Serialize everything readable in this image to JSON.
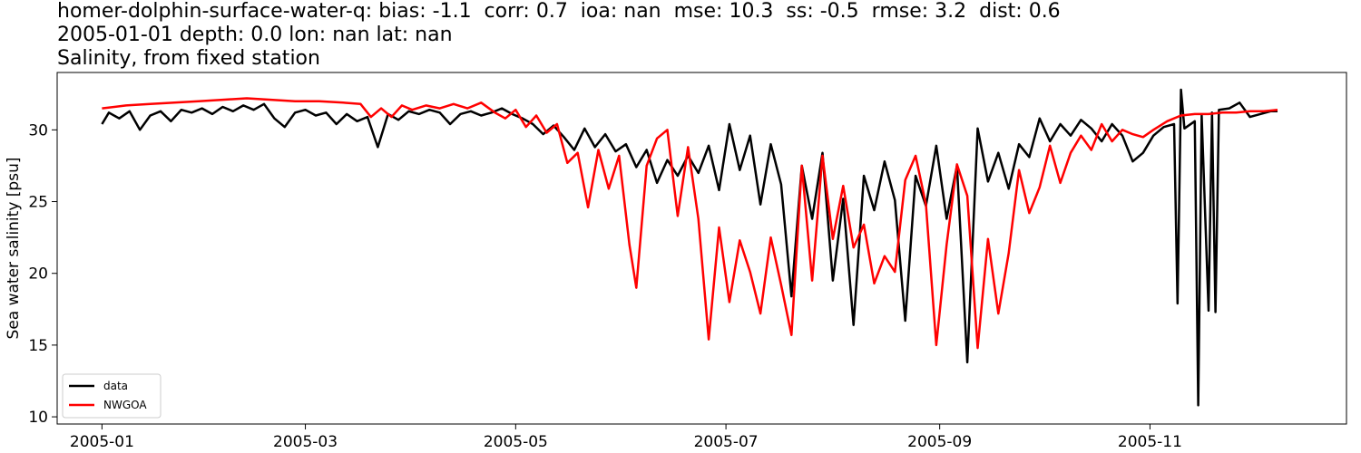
{
  "chart_data": {
    "type": "line",
    "title_lines": [
      "homer-dolphin-surface-water-q: bias: -1.1  corr: 0.7  ioa: nan  mse: 10.3  ss: -0.5  rmse: 3.2  dist: 0.6",
      "2005-01-01 depth: 0.0 lon: nan lat: nan",
      "Salinity, from fixed station"
    ],
    "xlabel": "",
    "ylabel": "Sea water salinity [psu]",
    "xlim": [
      "2004-12-19",
      "2005-12-28"
    ],
    "ylim": [
      9.5,
      34.0
    ],
    "x_ticks": [
      "2005-01",
      "2005-03",
      "2005-05",
      "2005-07",
      "2005-09",
      "2005-11"
    ],
    "y_ticks": [
      10,
      15,
      20,
      25,
      30
    ],
    "grid": false,
    "legend_position": "lower-left",
    "series": [
      {
        "name": "data",
        "color": "#000000",
        "points": [
          [
            "2005-01-01",
            30.4
          ],
          [
            "2005-01-03",
            31.2
          ],
          [
            "2005-01-06",
            30.8
          ],
          [
            "2005-01-09",
            31.3
          ],
          [
            "2005-01-12",
            30.0
          ],
          [
            "2005-01-15",
            31.0
          ],
          [
            "2005-01-18",
            31.3
          ],
          [
            "2005-01-21",
            30.6
          ],
          [
            "2005-01-24",
            31.4
          ],
          [
            "2005-01-27",
            31.2
          ],
          [
            "2005-01-30",
            31.5
          ],
          [
            "2005-02-02",
            31.1
          ],
          [
            "2005-02-05",
            31.6
          ],
          [
            "2005-02-08",
            31.3
          ],
          [
            "2005-02-11",
            31.7
          ],
          [
            "2005-02-14",
            31.4
          ],
          [
            "2005-02-17",
            31.8
          ],
          [
            "2005-02-20",
            30.8
          ],
          [
            "2005-02-23",
            30.2
          ],
          [
            "2005-02-26",
            31.2
          ],
          [
            "2005-03-01",
            31.4
          ],
          [
            "2005-03-04",
            31.0
          ],
          [
            "2005-03-07",
            31.2
          ],
          [
            "2005-03-10",
            30.4
          ],
          [
            "2005-03-13",
            31.1
          ],
          [
            "2005-03-16",
            30.6
          ],
          [
            "2005-03-19",
            30.9
          ],
          [
            "2005-03-22",
            28.8
          ],
          [
            "2005-03-25",
            31.1
          ],
          [
            "2005-03-28",
            30.7
          ],
          [
            "2005-03-31",
            31.3
          ],
          [
            "2005-04-03",
            31.1
          ],
          [
            "2005-04-06",
            31.4
          ],
          [
            "2005-04-09",
            31.2
          ],
          [
            "2005-04-12",
            30.4
          ],
          [
            "2005-04-15",
            31.1
          ],
          [
            "2005-04-18",
            31.3
          ],
          [
            "2005-04-21",
            31.0
          ],
          [
            "2005-04-24",
            31.2
          ],
          [
            "2005-04-27",
            31.5
          ],
          [
            "2005-04-30",
            31.1
          ],
          [
            "2005-05-03",
            30.8
          ],
          [
            "2005-05-06",
            30.4
          ],
          [
            "2005-05-09",
            29.7
          ],
          [
            "2005-05-12",
            30.3
          ],
          [
            "2005-05-15",
            29.5
          ],
          [
            "2005-05-18",
            28.6
          ],
          [
            "2005-05-21",
            30.1
          ],
          [
            "2005-05-24",
            28.8
          ],
          [
            "2005-05-27",
            29.7
          ],
          [
            "2005-05-30",
            28.5
          ],
          [
            "2005-06-02",
            29.0
          ],
          [
            "2005-06-05",
            27.4
          ],
          [
            "2005-06-08",
            28.6
          ],
          [
            "2005-06-11",
            26.3
          ],
          [
            "2005-06-14",
            27.9
          ],
          [
            "2005-06-17",
            26.8
          ],
          [
            "2005-06-20",
            28.2
          ],
          [
            "2005-06-23",
            27.0
          ],
          [
            "2005-06-26",
            28.9
          ],
          [
            "2005-06-29",
            25.8
          ],
          [
            "2005-07-02",
            30.4
          ],
          [
            "2005-07-05",
            27.2
          ],
          [
            "2005-07-08",
            29.6
          ],
          [
            "2005-07-11",
            24.8
          ],
          [
            "2005-07-14",
            29.0
          ],
          [
            "2005-07-17",
            26.2
          ],
          [
            "2005-07-20",
            18.4
          ],
          [
            "2005-07-23",
            27.5
          ],
          [
            "2005-07-26",
            23.8
          ],
          [
            "2005-07-29",
            28.4
          ],
          [
            "2005-08-01",
            19.5
          ],
          [
            "2005-08-04",
            25.2
          ],
          [
            "2005-08-07",
            16.4
          ],
          [
            "2005-08-10",
            26.8
          ],
          [
            "2005-08-13",
            24.4
          ],
          [
            "2005-08-16",
            27.8
          ],
          [
            "2005-08-19",
            25.1
          ],
          [
            "2005-08-22",
            16.7
          ],
          [
            "2005-08-25",
            26.8
          ],
          [
            "2005-08-28",
            24.7
          ],
          [
            "2005-08-31",
            28.9
          ],
          [
            "2005-09-03",
            23.8
          ],
          [
            "2005-09-06",
            27.5
          ],
          [
            "2005-09-09",
            13.8
          ],
          [
            "2005-09-12",
            30.1
          ],
          [
            "2005-09-15",
            26.4
          ],
          [
            "2005-09-18",
            28.4
          ],
          [
            "2005-09-21",
            25.9
          ],
          [
            "2005-09-24",
            29.0
          ],
          [
            "2005-09-27",
            28.1
          ],
          [
            "2005-09-30",
            30.8
          ],
          [
            "2005-10-03",
            29.2
          ],
          [
            "2005-10-06",
            30.4
          ],
          [
            "2005-10-09",
            29.6
          ],
          [
            "2005-10-12",
            30.7
          ],
          [
            "2005-10-15",
            30.1
          ],
          [
            "2005-10-18",
            29.2
          ],
          [
            "2005-10-21",
            30.4
          ],
          [
            "2005-10-24",
            29.6
          ],
          [
            "2005-10-27",
            27.8
          ],
          [
            "2005-10-30",
            28.4
          ],
          [
            "2005-11-02",
            29.6
          ],
          [
            "2005-11-05",
            30.2
          ],
          [
            "2005-11-08",
            30.4
          ],
          [
            "2005-11-09",
            17.9
          ],
          [
            "2005-11-10",
            32.8
          ],
          [
            "2005-11-11",
            30.1
          ],
          [
            "2005-11-14",
            30.6
          ],
          [
            "2005-11-15",
            10.8
          ],
          [
            "2005-11-16",
            31.0
          ],
          [
            "2005-11-18",
            17.4
          ],
          [
            "2005-11-19",
            31.2
          ],
          [
            "2005-11-20",
            17.3
          ],
          [
            "2005-11-21",
            31.4
          ],
          [
            "2005-11-24",
            31.5
          ],
          [
            "2005-11-27",
            31.9
          ],
          [
            "2005-11-30",
            30.9
          ],
          [
            "2005-12-03",
            31.1
          ],
          [
            "2005-12-06",
            31.3
          ],
          [
            "2005-12-08",
            31.3
          ]
        ]
      },
      {
        "name": "NWGOA",
        "color": "#ff0000",
        "points": [
          [
            "2005-01-01",
            31.5
          ],
          [
            "2005-01-08",
            31.7
          ],
          [
            "2005-01-15",
            31.8
          ],
          [
            "2005-01-22",
            31.9
          ],
          [
            "2005-01-29",
            32.0
          ],
          [
            "2005-02-05",
            32.1
          ],
          [
            "2005-02-12",
            32.2
          ],
          [
            "2005-02-19",
            32.1
          ],
          [
            "2005-02-26",
            32.0
          ],
          [
            "2005-03-05",
            32.0
          ],
          [
            "2005-03-12",
            31.9
          ],
          [
            "2005-03-17",
            31.8
          ],
          [
            "2005-03-20",
            30.9
          ],
          [
            "2005-03-23",
            31.5
          ],
          [
            "2005-03-26",
            30.9
          ],
          [
            "2005-03-29",
            31.7
          ],
          [
            "2005-04-01",
            31.4
          ],
          [
            "2005-04-05",
            31.7
          ],
          [
            "2005-04-09",
            31.5
          ],
          [
            "2005-04-13",
            31.8
          ],
          [
            "2005-04-17",
            31.5
          ],
          [
            "2005-04-21",
            31.9
          ],
          [
            "2005-04-25",
            31.2
          ],
          [
            "2005-04-28",
            30.8
          ],
          [
            "2005-05-01",
            31.4
          ],
          [
            "2005-05-04",
            30.2
          ],
          [
            "2005-05-07",
            31.0
          ],
          [
            "2005-05-10",
            29.8
          ],
          [
            "2005-05-13",
            30.4
          ],
          [
            "2005-05-16",
            27.7
          ],
          [
            "2005-05-19",
            28.4
          ],
          [
            "2005-05-22",
            24.6
          ],
          [
            "2005-05-25",
            28.6
          ],
          [
            "2005-05-28",
            25.9
          ],
          [
            "2005-05-31",
            28.2
          ],
          [
            "2005-06-03",
            22.0
          ],
          [
            "2005-06-05",
            19.0
          ],
          [
            "2005-06-08",
            27.5
          ],
          [
            "2005-06-11",
            29.4
          ],
          [
            "2005-06-14",
            30.0
          ],
          [
            "2005-06-17",
            24.0
          ],
          [
            "2005-06-20",
            28.8
          ],
          [
            "2005-06-23",
            23.8
          ],
          [
            "2005-06-26",
            15.4
          ],
          [
            "2005-06-29",
            23.2
          ],
          [
            "2005-07-02",
            18.0
          ],
          [
            "2005-07-05",
            22.3
          ],
          [
            "2005-07-08",
            20.1
          ],
          [
            "2005-07-11",
            17.2
          ],
          [
            "2005-07-14",
            22.5
          ],
          [
            "2005-07-17",
            19.2
          ],
          [
            "2005-07-20",
            15.7
          ],
          [
            "2005-07-23",
            27.5
          ],
          [
            "2005-07-26",
            19.5
          ],
          [
            "2005-07-29",
            28.2
          ],
          [
            "2005-08-01",
            22.4
          ],
          [
            "2005-08-04",
            26.1
          ],
          [
            "2005-08-07",
            21.8
          ],
          [
            "2005-08-10",
            23.4
          ],
          [
            "2005-08-13",
            19.3
          ],
          [
            "2005-08-16",
            21.2
          ],
          [
            "2005-08-19",
            20.1
          ],
          [
            "2005-08-22",
            26.5
          ],
          [
            "2005-08-25",
            28.2
          ],
          [
            "2005-08-28",
            24.8
          ],
          [
            "2005-08-31",
            15.0
          ],
          [
            "2005-09-03",
            22.0
          ],
          [
            "2005-09-06",
            27.6
          ],
          [
            "2005-09-09",
            25.4
          ],
          [
            "2005-09-12",
            14.8
          ],
          [
            "2005-09-15",
            22.4
          ],
          [
            "2005-09-18",
            17.2
          ],
          [
            "2005-09-21",
            21.4
          ],
          [
            "2005-09-24",
            27.2
          ],
          [
            "2005-09-27",
            24.2
          ],
          [
            "2005-09-30",
            26.0
          ],
          [
            "2005-10-03",
            28.9
          ],
          [
            "2005-10-06",
            26.3
          ],
          [
            "2005-10-09",
            28.4
          ],
          [
            "2005-10-12",
            29.6
          ],
          [
            "2005-10-15",
            28.6
          ],
          [
            "2005-10-18",
            30.4
          ],
          [
            "2005-10-21",
            29.2
          ],
          [
            "2005-10-24",
            30.0
          ],
          [
            "2005-10-27",
            29.7
          ],
          [
            "2005-10-30",
            29.5
          ],
          [
            "2005-11-02",
            30.0
          ],
          [
            "2005-11-06",
            30.6
          ],
          [
            "2005-11-10",
            31.0
          ],
          [
            "2005-11-14",
            31.1
          ],
          [
            "2005-11-18",
            31.1
          ],
          [
            "2005-11-22",
            31.2
          ],
          [
            "2005-11-26",
            31.2
          ],
          [
            "2005-11-30",
            31.3
          ],
          [
            "2005-12-04",
            31.3
          ],
          [
            "2005-12-08",
            31.4
          ]
        ]
      }
    ]
  }
}
